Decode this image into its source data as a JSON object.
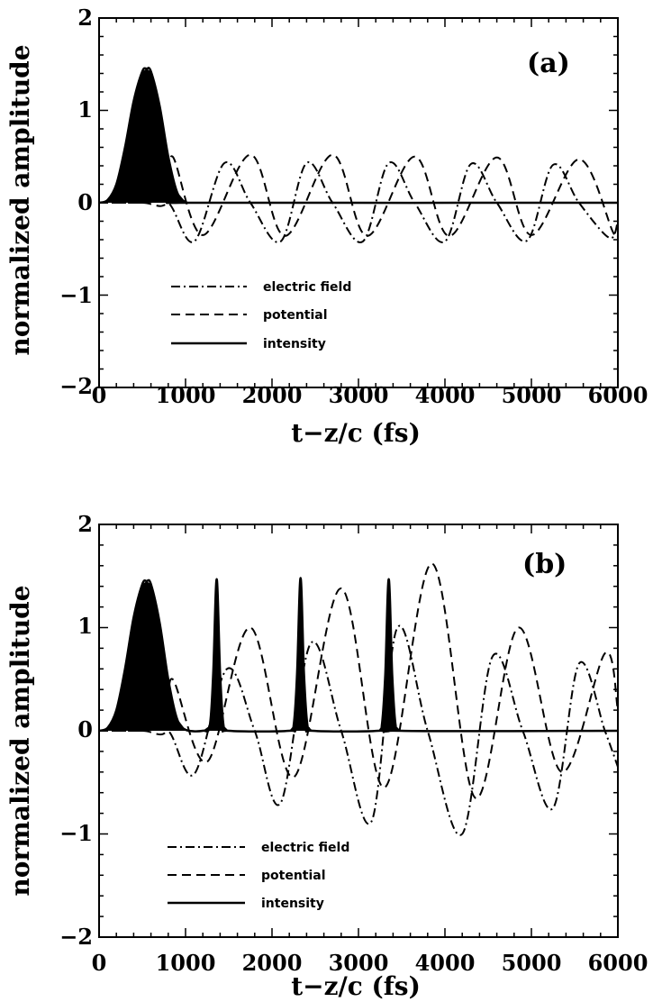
{
  "charts": [
    {
      "panel_label": "(a)",
      "xlabel": "t−z/c  (fs)",
      "ylabel": "normalized amplitude",
      "legend_labels": [
        "electric field",
        "potential",
        "intensity"
      ],
      "xtick_labels": [
        "0",
        "1000",
        "2000",
        "3000",
        "4000",
        "5000",
        "6000"
      ],
      "ytick_labels": [
        "−2",
        "−1",
        "0",
        "1",
        "2"
      ]
    },
    {
      "panel_label": "(b)",
      "xlabel": "t−z/c  (fs)",
      "ylabel": "normalized amplitude",
      "legend_labels": [
        "electric field",
        "potential",
        "intensity"
      ],
      "xtick_labels": [
        "0",
        "1000",
        "2000",
        "3000",
        "4000",
        "5000",
        "6000"
      ],
      "ytick_labels": [
        "−2",
        "−1",
        "0",
        "1",
        "2"
      ]
    }
  ],
  "chart_data": [
    {
      "type": "line",
      "title": "",
      "panel_label": "(a)",
      "xlabel": "t−z/c  (fs)",
      "ylabel": "normalized amplitude",
      "xlim": [
        0,
        6000
      ],
      "ylim": [
        -2,
        2
      ],
      "xticks": [
        0,
        1000,
        2000,
        3000,
        4000,
        5000,
        6000
      ],
      "yticks": [
        -2,
        -1,
        0,
        1,
        2
      ],
      "grid": false,
      "legend_position": "lower-left",
      "series": [
        {
          "name": "electric field",
          "style": "dash-dot",
          "x": [
            0,
            500,
            800,
            1100,
            1450,
            1750,
            2100,
            2400,
            2700,
            3050,
            3350,
            3650,
            4000,
            4300,
            4600,
            4950,
            5250,
            5550,
            5900,
            6000
          ],
          "y": [
            0,
            0,
            0,
            -0.42,
            0.43,
            0,
            -0.42,
            0.43,
            0,
            -0.42,
            0.43,
            0,
            -0.42,
            0.42,
            0,
            -0.41,
            0.41,
            0,
            -0.38,
            -0.2
          ]
        },
        {
          "name": "potential",
          "style": "dashed",
          "x": [
            0,
            500,
            780,
            850,
            1200,
            1750,
            2150,
            2700,
            3100,
            3650,
            4050,
            4600,
            5000,
            5550,
            5950,
            6000
          ],
          "y": [
            0,
            0,
            0,
            0.5,
            -0.35,
            0.52,
            -0.36,
            0.52,
            -0.36,
            0.5,
            -0.36,
            0.49,
            -0.35,
            0.47,
            -0.33,
            -0.28
          ]
        },
        {
          "name": "intensity",
          "style": "solid-filled",
          "x": [
            0,
            100,
            200,
            300,
            400,
            500,
            550,
            600,
            700,
            800,
            900,
            1000,
            1200,
            6000
          ],
          "y": [
            0,
            0.03,
            0.2,
            0.6,
            1.1,
            1.42,
            1.45,
            1.42,
            1.05,
            0.5,
            0.12,
            0.01,
            0,
            0
          ]
        }
      ]
    },
    {
      "type": "line",
      "title": "",
      "panel_label": "(b)",
      "xlabel": "t−z/c  (fs)",
      "ylabel": "normalized amplitude",
      "xlim": [
        0,
        6000
      ],
      "ylim": [
        -2,
        2
      ],
      "xticks": [
        0,
        1000,
        2000,
        3000,
        4000,
        5000,
        6000
      ],
      "yticks": [
        -2,
        -1,
        0,
        1,
        2
      ],
      "grid": false,
      "legend_position": "lower-left",
      "series": [
        {
          "name": "electric field",
          "style": "dash-dot",
          "x": [
            0,
            500,
            800,
            1100,
            1480,
            1800,
            2100,
            2450,
            2800,
            3150,
            3450,
            3800,
            4200,
            4550,
            4900,
            5250,
            5550,
            5850,
            6000
          ],
          "y": [
            0,
            0,
            0,
            -0.42,
            0.6,
            0,
            -0.7,
            0.85,
            0,
            -0.88,
            1.0,
            0,
            -1.0,
            0.72,
            0,
            -0.75,
            0.65,
            0,
            -0.35
          ]
        },
        {
          "name": "potential",
          "style": "dashed",
          "x": [
            0,
            500,
            780,
            850,
            1250,
            1750,
            2250,
            2800,
            3300,
            3850,
            4350,
            4850,
            5350,
            5850,
            6000
          ],
          "y": [
            0,
            0,
            0,
            0.5,
            -0.3,
            1.0,
            -0.45,
            1.38,
            -0.55,
            1.62,
            -0.65,
            1.0,
            -0.4,
            0.75,
            0.2
          ]
        },
        {
          "name": "intensity",
          "style": "solid-filled",
          "x": [
            0,
            100,
            200,
            300,
            400,
            500,
            550,
            600,
            700,
            800,
            900,
            1000,
            1200,
            1280,
            1320,
            1360,
            1400,
            1440,
            1500,
            2200,
            2250,
            2290,
            2330,
            2370,
            2410,
            2470,
            3230,
            3270,
            3310,
            3350,
            3390,
            3430,
            3490,
            6000
          ],
          "y": [
            0,
            0.03,
            0.2,
            0.6,
            1.1,
            1.42,
            1.45,
            1.42,
            1.05,
            0.5,
            0.12,
            0.01,
            0,
            0.05,
            0.55,
            1.47,
            0.55,
            0.05,
            0,
            0,
            0.05,
            0.55,
            1.48,
            0.55,
            0.05,
            0,
            0,
            0.05,
            0.55,
            1.47,
            0.55,
            0.05,
            0,
            0
          ]
        }
      ]
    }
  ]
}
